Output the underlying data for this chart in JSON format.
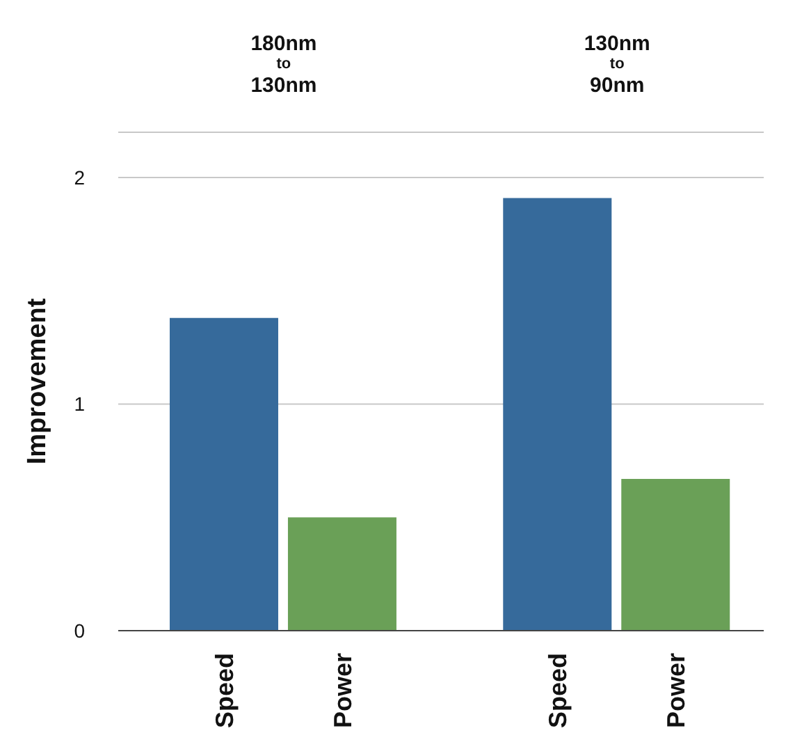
{
  "chart_data": {
    "type": "bar",
    "ylabel": "Improvement",
    "categories": [
      "Speed",
      "Power",
      "Speed",
      "Power"
    ],
    "values": [
      1.38,
      0.5,
      1.91,
      0.67
    ],
    "colors": [
      "#366a9b",
      "#6aa057",
      "#366a9b",
      "#6aa057"
    ],
    "ylim": [
      0,
      2.2
    ],
    "yticks": [
      0,
      1,
      2
    ],
    "grid": "y",
    "annotations": [
      "180nm\nto\n130nm",
      "130nm\nto\n90nm"
    ]
  }
}
